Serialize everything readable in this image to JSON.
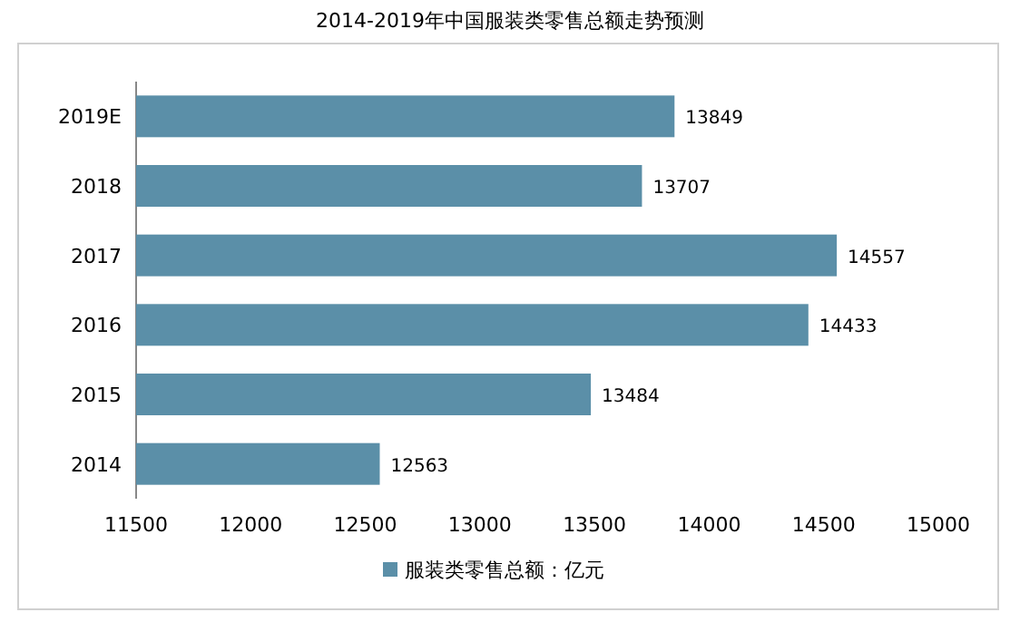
{
  "chart_data": {
    "type": "bar",
    "orientation": "horizontal",
    "title": "2014-2019年中国服装类零售总额走势预测",
    "categories": [
      "2019E",
      "2018",
      "2017",
      "2016",
      "2015",
      "2014"
    ],
    "series": [
      {
        "name": "服装类零售总额：亿元",
        "color": "#5b8fa8",
        "values": [
          13849,
          13707,
          14557,
          14433,
          13484,
          12563
        ]
      }
    ],
    "xlim": [
      11500,
      15000
    ],
    "xticks": [
      11500,
      12000,
      12500,
      13000,
      13500,
      14000,
      14500,
      15000
    ],
    "data_labels": true,
    "legend": "bottom",
    "grid": false
  }
}
